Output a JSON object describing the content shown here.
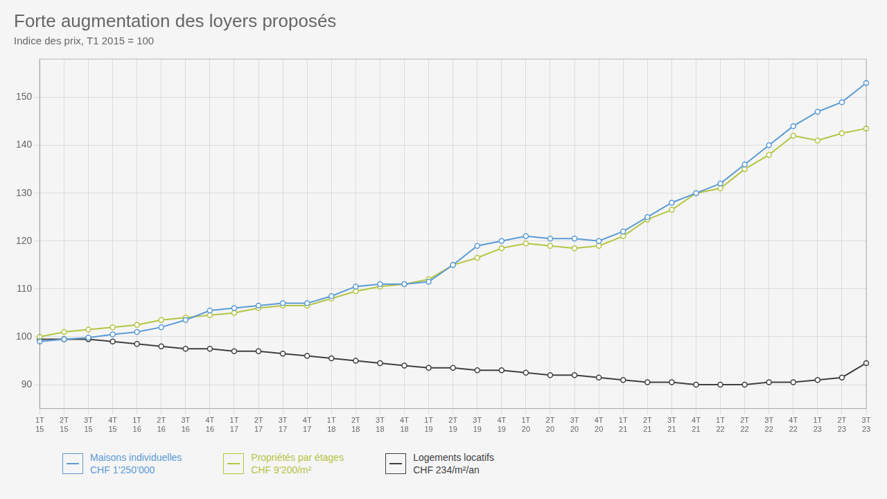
{
  "chart_data": {
    "type": "line",
    "title": "Forte augmentation des loyers proposés",
    "subtitle": "Indice des prix, T1 2015 = 100",
    "background_color": "#f5f5f5",
    "categories": [
      [
        "1T",
        "15"
      ],
      [
        "2T",
        "15"
      ],
      [
        "3T",
        "15"
      ],
      [
        "4T",
        "15"
      ],
      [
        "1T",
        "16"
      ],
      [
        "2T",
        "16"
      ],
      [
        "3T",
        "16"
      ],
      [
        "4T",
        "16"
      ],
      [
        "1T",
        "17"
      ],
      [
        "2T",
        "17"
      ],
      [
        "3T",
        "17"
      ],
      [
        "4T",
        "17"
      ],
      [
        "1T",
        "18"
      ],
      [
        "2T",
        "18"
      ],
      [
        "3T",
        "18"
      ],
      [
        "4T",
        "18"
      ],
      [
        "1T",
        "19"
      ],
      [
        "2T",
        "19"
      ],
      [
        "3T",
        "19"
      ],
      [
        "4T",
        "19"
      ],
      [
        "1T",
        "20"
      ],
      [
        "2T",
        "20"
      ],
      [
        "3T",
        "20"
      ],
      [
        "4T",
        "20"
      ],
      [
        "1T",
        "21"
      ],
      [
        "2T",
        "21"
      ],
      [
        "3T",
        "21"
      ],
      [
        "4T",
        "21"
      ],
      [
        "1T",
        "22"
      ],
      [
        "2T",
        "22"
      ],
      [
        "3T",
        "22"
      ],
      [
        "4T",
        "22"
      ],
      [
        "1T",
        "23"
      ],
      [
        "2T",
        "23"
      ],
      [
        "3T",
        "23"
      ]
    ],
    "series": [
      {
        "name": [
          "Maisons individuelles",
          "CHF 1’250’000"
        ],
        "color": "#5b9bd5",
        "values": [
          99.0,
          99.5,
          99.8,
          100.5,
          101.0,
          102.0,
          103.5,
          105.5,
          106.0,
          106.5,
          107.0,
          107.0,
          108.5,
          110.5,
          111.0,
          111.0,
          111.5,
          115.0,
          119.0,
          120.0,
          121.0,
          120.5,
          120.5,
          120.0,
          122.0,
          125.0,
          128.0,
          130.0,
          132.0,
          136.0,
          140.0,
          144.0,
          147.0,
          149.0,
          153.0
        ]
      },
      {
        "name": [
          "Propriétés par étages",
          "CHF 9’200/m²"
        ],
        "color": "#b5c443",
        "values": [
          100.0,
          101.0,
          101.5,
          102.0,
          102.5,
          103.5,
          104.0,
          104.5,
          105.0,
          106.0,
          106.5,
          106.5,
          108.0,
          109.5,
          110.5,
          111.0,
          112.0,
          115.0,
          116.5,
          118.5,
          119.5,
          119.0,
          118.5,
          119.0,
          121.0,
          124.5,
          126.5,
          130.0,
          131.0,
          135.0,
          138.0,
          142.0,
          141.0,
          142.5,
          143.5
        ]
      },
      {
        "name": [
          "Logements locatifs",
          "CHF 234/m²/an"
        ],
        "color": "#404040",
        "values": [
          99.5,
          99.5,
          99.5,
          99.0,
          98.5,
          98.0,
          97.5,
          97.5,
          97.0,
          97.0,
          96.5,
          96.0,
          95.5,
          95.0,
          94.5,
          94.0,
          93.5,
          93.5,
          93.0,
          93.0,
          92.5,
          92.0,
          92.0,
          91.5,
          91.0,
          90.5,
          90.5,
          90.0,
          90.0,
          90.0,
          90.5,
          90.5,
          91.0,
          91.5,
          94.5
        ]
      }
    ],
    "ylim": [
      85,
      158
    ],
    "yticks": [
      90,
      100,
      110,
      120,
      130,
      140,
      150
    ],
    "grid": true,
    "legend": "bottom",
    "marker": "circle"
  }
}
